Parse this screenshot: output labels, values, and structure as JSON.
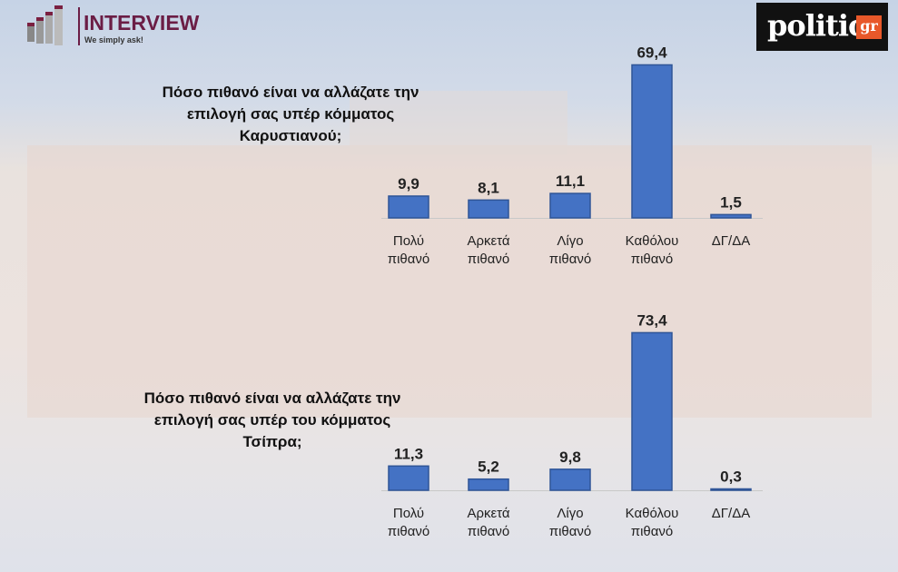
{
  "logos": {
    "left": {
      "name": "INTERVIEW",
      "tagline": "We simply ask!"
    },
    "right": {
      "name": "politic",
      "suffix": "gr"
    }
  },
  "colors": {
    "bar": "#4472c4",
    "bar_dark": "#2f5597",
    "brand_interview": "#6b1d45",
    "brand_politic": "#e8582a"
  },
  "chart_data": [
    {
      "type": "bar",
      "title": "Πόσο πιθανό είναι να αλλάζατε την επιλογή σας υπέρ κόμματος Καρυστιανού;",
      "title_lines": [
        "Πόσο πιθανό είναι να αλλάζατε την",
        "επιλογή σας υπέρ κόμματος",
        "Καρυστιανού;"
      ],
      "categories": [
        [
          "Πολύ",
          "πιθανό"
        ],
        [
          "Αρκετά",
          "πιθανό"
        ],
        [
          "Λίγο",
          "πιθανό"
        ],
        [
          "Καθόλου",
          "πιθανό"
        ],
        [
          "ΔΓ/ΔΑ",
          ""
        ]
      ],
      "values": [
        9.9,
        8.1,
        11.1,
        69.4,
        1.5
      ],
      "value_labels": [
        "9,9",
        "8,1",
        "11,1",
        "69,4",
        "1,5"
      ],
      "ylim": [
        0,
        70
      ],
      "grid": false
    },
    {
      "type": "bar",
      "title": "Πόσο πιθανό είναι να αλλάζατε την επιλογή σας υπέρ του κόμματος Τσίπρα;",
      "title_lines": [
        "Πόσο πιθανό είναι να αλλάζατε την",
        "επιλογή σας υπέρ του κόμματος",
        "Τσίπρα;"
      ],
      "categories": [
        [
          "Πολύ",
          "πιθανό"
        ],
        [
          "Αρκετά",
          "πιθανό"
        ],
        [
          "Λίγο",
          "πιθανό"
        ],
        [
          "Καθόλου",
          "πιθανό"
        ],
        [
          "ΔΓ/ΔΑ",
          ""
        ]
      ],
      "values": [
        11.3,
        5.2,
        9.8,
        73.4,
        0.3
      ],
      "value_labels": [
        "11,3",
        "5,2",
        "9,8",
        "73,4",
        "0,3"
      ],
      "ylim": [
        0,
        74
      ],
      "grid": false
    }
  ]
}
